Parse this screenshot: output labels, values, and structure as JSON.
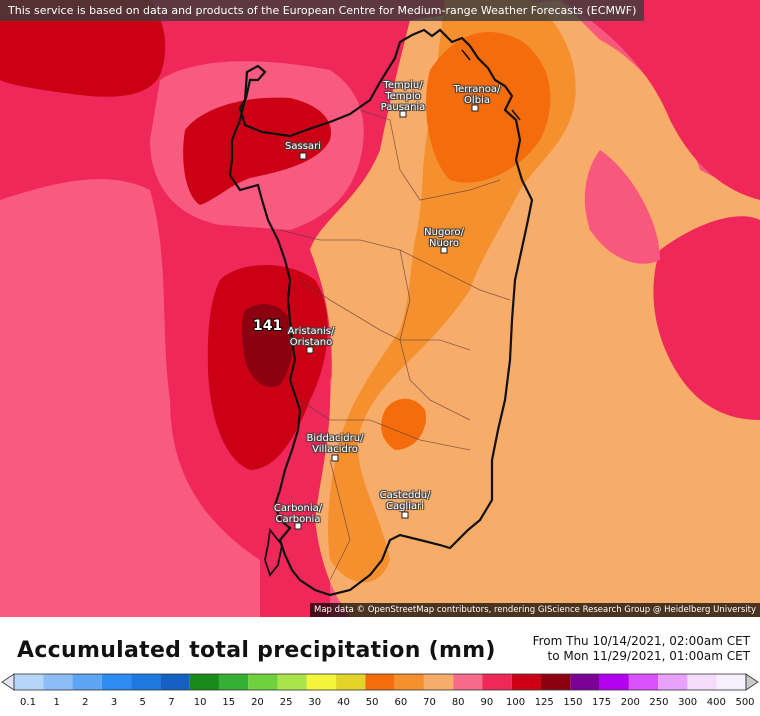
{
  "attribution_top": "This service is based on data and products of the European Centre for Medium-range Weather Forecasts (ECMWF)",
  "attribution_bottom": "Map data © OpenStreetMap contributors, rendering GIScience Research Group @ Heidelberg University",
  "max_marker": "141",
  "cities": [
    {
      "name": "Sassari"
    },
    {
      "name": "Tempiu/\nTempio\nPausania"
    },
    {
      "name": "Terranoa/\nOlbia"
    },
    {
      "name": "Nugoro/\nNuoro"
    },
    {
      "name": "Aristanis/\nOristano"
    },
    {
      "name": "Biddacidru/\nVillacidro"
    },
    {
      "name": "Casteddu/\nCagliari"
    },
    {
      "name": "Carbonia/\nCarbonia"
    }
  ],
  "title": "Accumulated total precipitation (mm)",
  "period": {
    "from": "From Thu 10/14/2021, 02:00am CET",
    "to": "to Mon 11/29/2021, 01:00am CET"
  },
  "legend": {
    "ticks": [
      "0.1",
      "1",
      "2",
      "3",
      "5",
      "7",
      "10",
      "15",
      "20",
      "25",
      "30",
      "40",
      "50",
      "60",
      "70",
      "80",
      "90",
      "100",
      "125",
      "150",
      "175",
      "200",
      "250",
      "300",
      "400",
      "500"
    ],
    "colors": [
      "#e4e4f6",
      "#b4d4f8",
      "#8cbcf6",
      "#5ca4f4",
      "#2c8cf2",
      "#1e78e0",
      "#1460c4",
      "#1a8a1a",
      "#34b034",
      "#6ed23e",
      "#a8e44a",
      "#f4f43a",
      "#e4d428",
      "#f46c0c",
      "#f4902e",
      "#f8ac6a",
      "#f86a8a",
      "#f0285a",
      "#cc0014",
      "#8c0010",
      "#7a0096",
      "#b400f0",
      "#d854fa",
      "#e8a2fa",
      "#f6dcfc",
      "#f6f0fc",
      "#c8c8c8"
    ]
  }
}
